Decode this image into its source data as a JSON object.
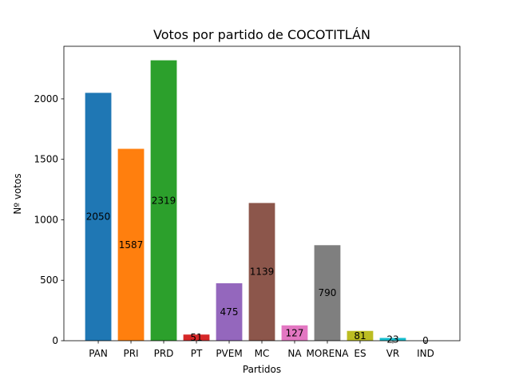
{
  "chart_data": {
    "type": "bar",
    "title": "Votos por partido de COCOTITLÁN",
    "xlabel": "Partidos",
    "ylabel": "Nº votos",
    "categories": [
      "PAN",
      "PRI",
      "PRD",
      "PT",
      "PVEM",
      "MC",
      "NA",
      "MORENA",
      "ES",
      "VR",
      "IND"
    ],
    "values": [
      2050,
      1587,
      2319,
      51,
      475,
      1139,
      127,
      790,
      81,
      23,
      0
    ],
    "colors": [
      "#1f77b4",
      "#ff7f0e",
      "#2ca02c",
      "#d62728",
      "#9467bd",
      "#8c564b",
      "#e377c2",
      "#7f7f7f",
      "#bcbd22",
      "#17becf",
      "#1f77b4"
    ],
    "yticks": [
      0,
      500,
      1000,
      1500,
      2000
    ],
    "ylim": [
      0,
      2435
    ],
    "grid": false,
    "legend": "none"
  }
}
